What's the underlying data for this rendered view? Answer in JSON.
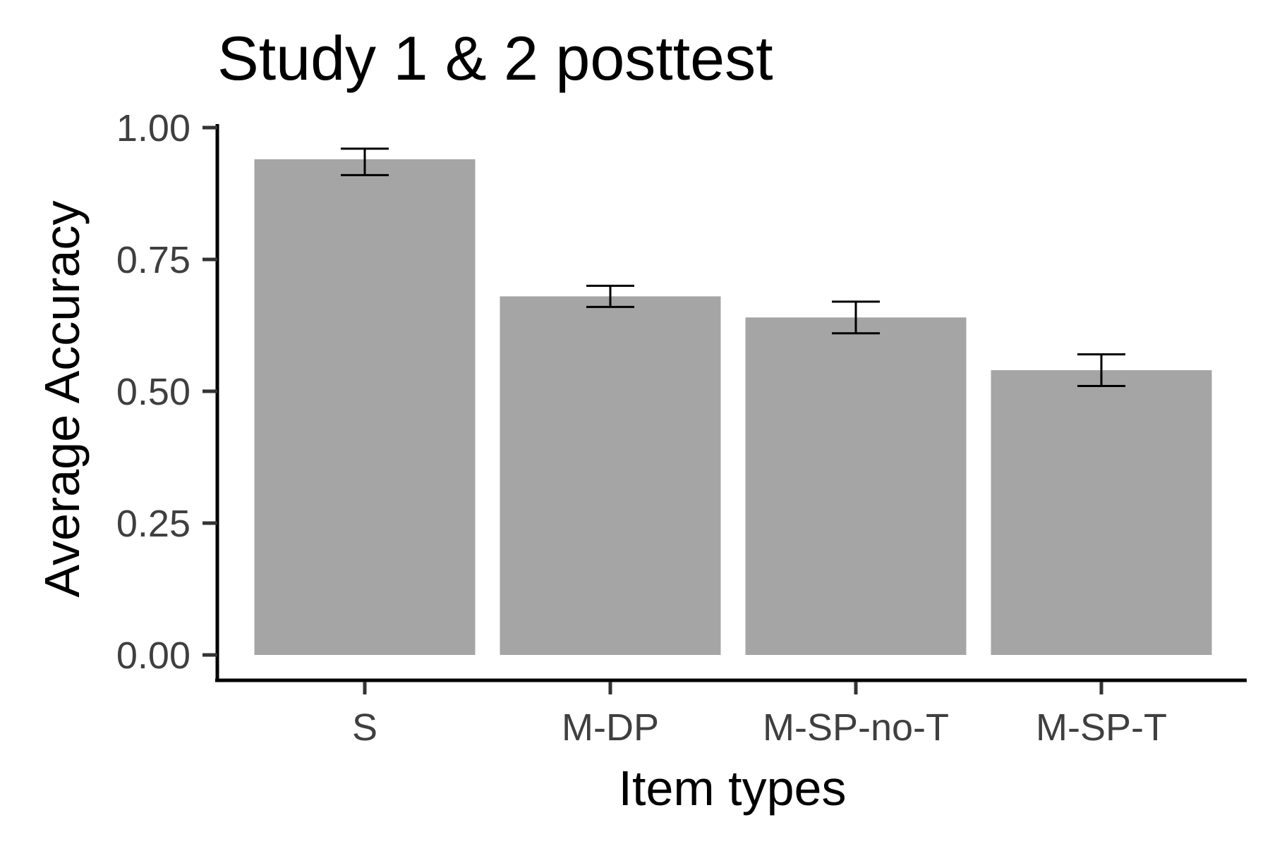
{
  "chart_data": {
    "type": "bar",
    "title": "Study 1 & 2 posttest",
    "xlabel": "Item types",
    "ylabel": "Average Accuracy",
    "categories": [
      "S",
      "M-DP",
      "M-SP-no-T",
      "M-SP-T"
    ],
    "values": [
      0.94,
      0.68,
      0.64,
      0.54
    ],
    "error_low": [
      0.91,
      0.66,
      0.61,
      0.51
    ],
    "error_high": [
      0.96,
      0.7,
      0.67,
      0.57
    ],
    "ylim": [
      0,
      1
    ],
    "yticks": [
      "0.00",
      "0.25",
      "0.50",
      "0.75",
      "1.00"
    ],
    "ytick_values": [
      0,
      0.25,
      0.5,
      0.75,
      1
    ],
    "bar_color": "#a5a5a5",
    "grid": false,
    "legend": "none"
  }
}
